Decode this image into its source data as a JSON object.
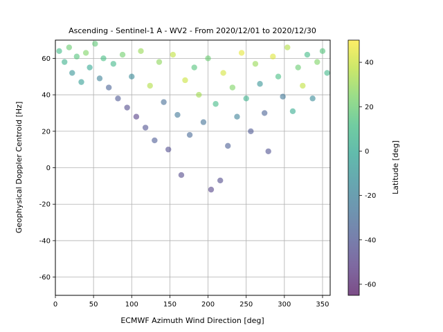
{
  "chart_data": {
    "type": "scatter",
    "title": "Ascending - Sentinel-1 A - WV2 - From 2020/12/01 to 2020/12/30",
    "xlabel": "ECMWF Azimuth Wind Direction [deg]",
    "ylabel": "Geophysical Doppler Centroid [Hz]",
    "xlim": [
      0,
      360
    ],
    "ylim": [
      -70,
      70
    ],
    "xticks": [
      0,
      50,
      100,
      150,
      200,
      250,
      300,
      350
    ],
    "yticks": [
      -60,
      -40,
      -20,
      0,
      20,
      40,
      60
    ],
    "grid": true,
    "marker_alpha": 0.55,
    "colorbar": {
      "label": "Latitude [deg]",
      "range": [
        -65,
        50
      ],
      "ticks": [
        -60,
        -40,
        -20,
        0,
        20,
        40
      ],
      "colormap": "viridis",
      "colors": [
        "#440154",
        "#482878",
        "#3e4989",
        "#31688e",
        "#26828e",
        "#1f9e89",
        "#35b779",
        "#6ece58",
        "#b5de2b",
        "#fde725"
      ]
    },
    "points": [
      {
        "x": 5,
        "y": 64,
        "c": 10
      },
      {
        "x": 12,
        "y": 58,
        "c": 5
      },
      {
        "x": 18,
        "y": 66,
        "c": 20
      },
      {
        "x": 22,
        "y": 52,
        "c": -10
      },
      {
        "x": 28,
        "y": 61,
        "c": 15
      },
      {
        "x": 34,
        "y": 47,
        "c": -5
      },
      {
        "x": 40,
        "y": 63,
        "c": 25
      },
      {
        "x": 45,
        "y": 55,
        "c": 0
      },
      {
        "x": 52,
        "y": 68,
        "c": 18
      },
      {
        "x": 58,
        "y": 49,
        "c": -20
      },
      {
        "x": 63,
        "y": 60,
        "c": 12
      },
      {
        "x": 70,
        "y": 44,
        "c": -35
      },
      {
        "x": 76,
        "y": 57,
        "c": 8
      },
      {
        "x": 82,
        "y": 38,
        "c": -40
      },
      {
        "x": 88,
        "y": 62,
        "c": 22
      },
      {
        "x": 94,
        "y": 33,
        "c": -45
      },
      {
        "x": 100,
        "y": 50,
        "c": -15
      },
      {
        "x": 106,
        "y": 28,
        "c": -50
      },
      {
        "x": 112,
        "y": 64,
        "c": 30
      },
      {
        "x": 118,
        "y": 22,
        "c": -42
      },
      {
        "x": 124,
        "y": 45,
        "c": 35
      },
      {
        "x": 130,
        "y": 15,
        "c": -38
      },
      {
        "x": 136,
        "y": 58,
        "c": 28
      },
      {
        "x": 142,
        "y": 36,
        "c": -30
      },
      {
        "x": 148,
        "y": 10,
        "c": -44
      },
      {
        "x": 154,
        "y": 62,
        "c": 38
      },
      {
        "x": 160,
        "y": 29,
        "c": -25
      },
      {
        "x": 165,
        "y": -4,
        "c": -46
      },
      {
        "x": 170,
        "y": 48,
        "c": 40
      },
      {
        "x": 176,
        "y": 18,
        "c": -32
      },
      {
        "x": 182,
        "y": 55,
        "c": 15
      },
      {
        "x": 188,
        "y": 40,
        "c": 32
      },
      {
        "x": 194,
        "y": 25,
        "c": -28
      },
      {
        "x": 200,
        "y": 60,
        "c": 20
      },
      {
        "x": 204,
        "y": -12,
        "c": -48
      },
      {
        "x": 210,
        "y": 35,
        "c": 10
      },
      {
        "x": 216,
        "y": -7,
        "c": -45
      },
      {
        "x": 220,
        "y": 52,
        "c": 42
      },
      {
        "x": 226,
        "y": 12,
        "c": -36
      },
      {
        "x": 232,
        "y": 44,
        "c": 25
      },
      {
        "x": 238,
        "y": 28,
        "c": -20
      },
      {
        "x": 244,
        "y": 63,
        "c": 45
      },
      {
        "x": 250,
        "y": 38,
        "c": 5
      },
      {
        "x": 256,
        "y": 20,
        "c": -40
      },
      {
        "x": 262,
        "y": 57,
        "c": 30
      },
      {
        "x": 268,
        "y": 46,
        "c": -10
      },
      {
        "x": 274,
        "y": 30,
        "c": -35
      },
      {
        "x": 279,
        "y": 9,
        "c": -42
      },
      {
        "x": 285,
        "y": 61,
        "c": 44
      },
      {
        "x": 292,
        "y": 50,
        "c": 12
      },
      {
        "x": 298,
        "y": 39,
        "c": -25
      },
      {
        "x": 304,
        "y": 66,
        "c": 35
      },
      {
        "x": 311,
        "y": 31,
        "c": 2
      },
      {
        "x": 318,
        "y": 55,
        "c": 20
      },
      {
        "x": 324,
        "y": 45,
        "c": 38
      },
      {
        "x": 330,
        "y": 62,
        "c": 10
      },
      {
        "x": 337,
        "y": 38,
        "c": -15
      },
      {
        "x": 343,
        "y": 58,
        "c": 25
      },
      {
        "x": 350,
        "y": 64,
        "c": 15
      },
      {
        "x": 356,
        "y": 52,
        "c": 8
      }
    ]
  }
}
